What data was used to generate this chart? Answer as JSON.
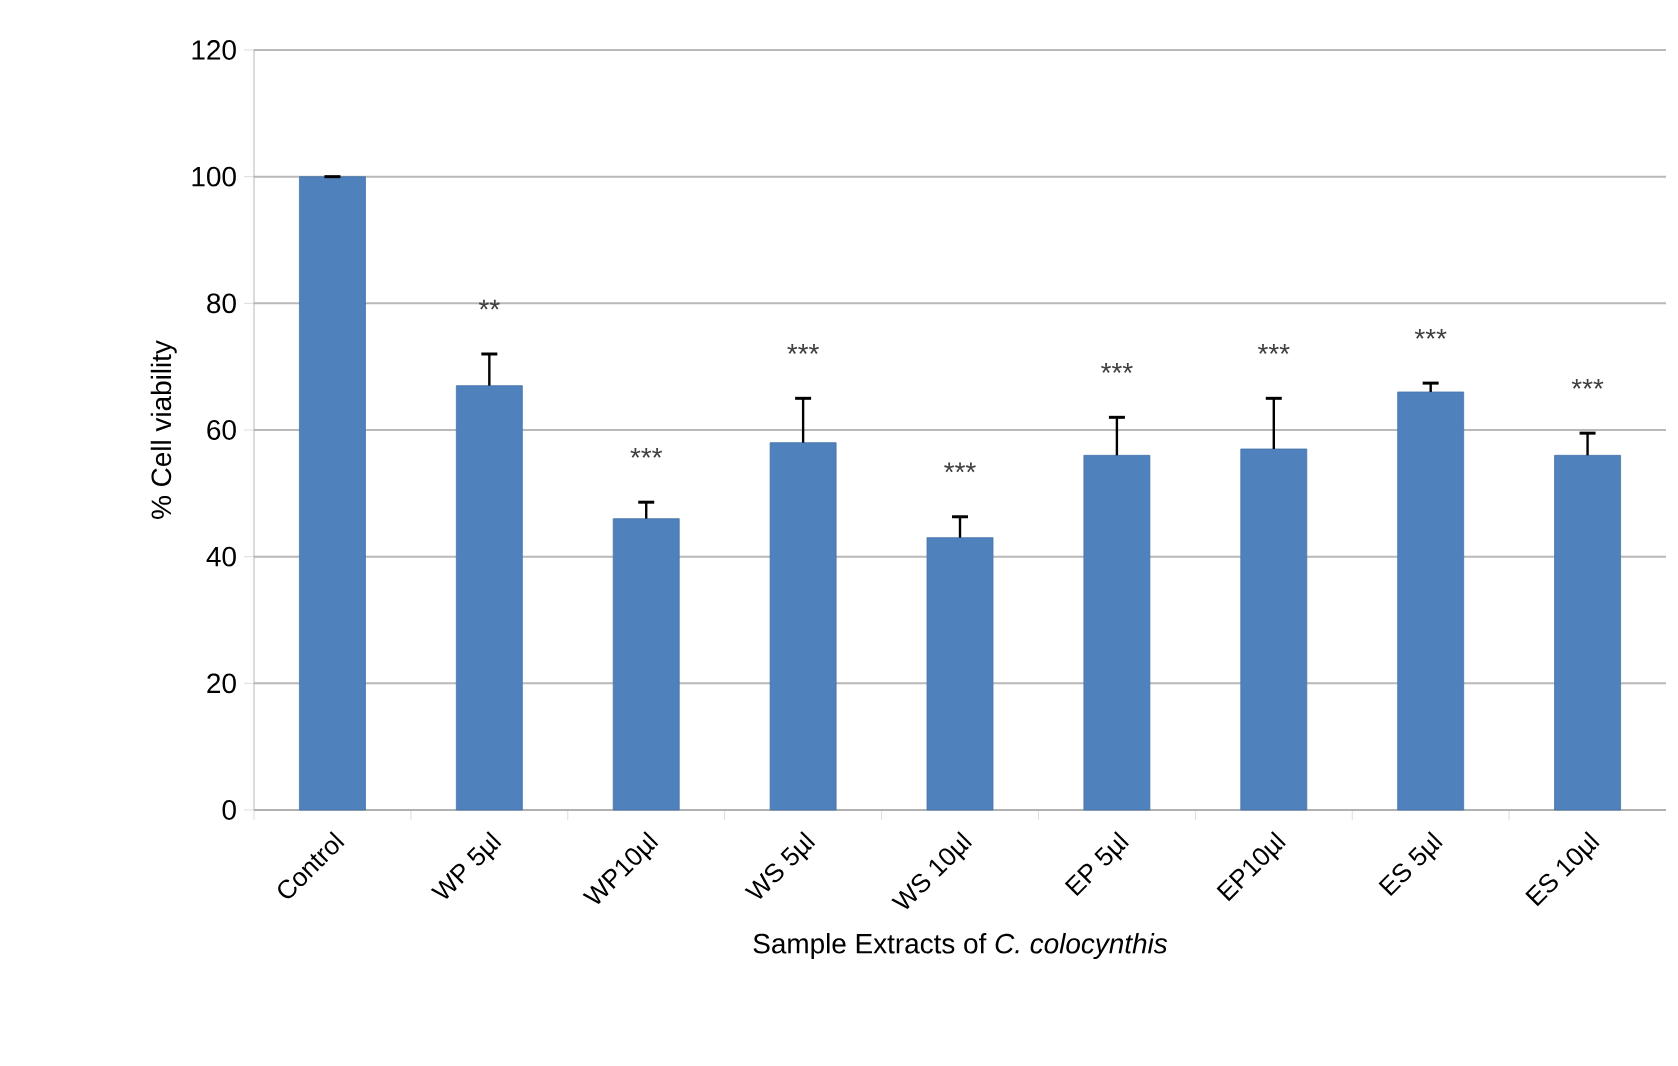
{
  "chart_data": {
    "type": "bar",
    "xlabel": "Sample Extracts of *C. colocynthis*",
    "ylabel": "% Cell viability",
    "categories": [
      "Control",
      "WP 5µl",
      "WP10µl",
      "WS 5µl",
      "WS 10µl",
      "EP 5µl",
      "EP10µl",
      "ES 5µl",
      "ES 10µl"
    ],
    "values": [
      100,
      67,
      46,
      58,
      43,
      56,
      57,
      66,
      56
    ],
    "errors": [
      [
        100,
        100
      ],
      [
        67,
        72
      ],
      [
        46,
        48.6
      ],
      [
        58,
        65
      ],
      [
        43,
        46.3
      ],
      [
        56,
        62
      ],
      [
        57,
        65
      ],
      [
        66,
        67.4
      ],
      [
        56,
        59.5
      ]
    ],
    "color": "#4f81bd",
    "ylim": [
      0,
      120
    ],
    "yticks": [
      0,
      20,
      40,
      60,
      80,
      100,
      120
    ],
    "grid": "y",
    "annotations": [
      "**",
      "***",
      "***",
      "***",
      "***",
      "***",
      "***",
      "***"
    ]
  }
}
